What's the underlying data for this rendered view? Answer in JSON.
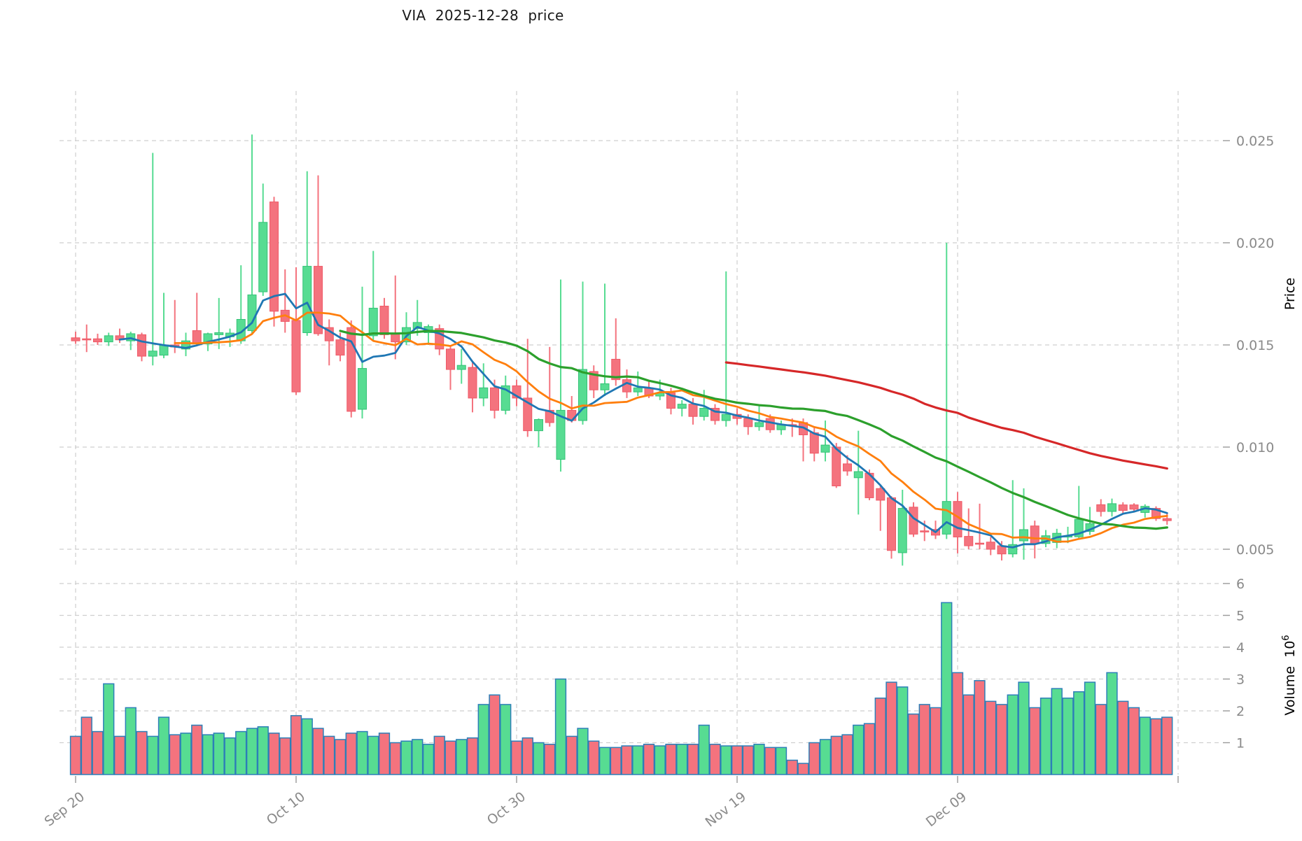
{
  "title": "VIA  2025-12-28  price",
  "chart_data": {
    "type": "candlestick",
    "symbol": "VIA",
    "as_of_label": "2025-12-28",
    "title": "VIA  2025-12-28  price",
    "price_axis": {
      "label": "Price",
      "ticks": [
        0.005,
        0.01,
        0.015,
        0.02,
        0.025
      ],
      "tick_labels": [
        "0.005",
        "0.010",
        "0.015",
        "0.020",
        "0.025"
      ]
    },
    "volume_axis": {
      "label": "Volume",
      "scale_base": "10",
      "scale_exponent": "6",
      "ticks": [
        1,
        2,
        3,
        4,
        5,
        6
      ]
    },
    "x_axis": {
      "tick_labels": [
        "Sep 20",
        "Oct 10",
        "Oct 30",
        "Nov 19",
        "Dec 09",
        ""
      ],
      "tick_bar_indices": [
        0,
        20,
        40,
        60,
        80,
        100
      ]
    },
    "moving_averages": [
      {
        "name": "SMA5",
        "period": 5,
        "color": "#1f77b4",
        "width": 2.8
      },
      {
        "name": "SMA10",
        "period": 10,
        "color": "#ff7f0e",
        "width": 2.8
      },
      {
        "name": "SMA25",
        "period": 25,
        "color": "#2ca02c",
        "width": 3.2
      },
      {
        "name": "SMA60",
        "period": 60,
        "color": "#d62728",
        "width": 3.2
      }
    ],
    "colors": {
      "up": "#57dc92",
      "up_edge": "#35c277",
      "down": "#f4737e",
      "down_edge": "#ef5967",
      "volume_edge": "#2d7fb8",
      "grid": "#cfcfcf",
      "tick_text": "#8a8a8a",
      "axis_text": "#000000",
      "title_text": "#1a1a1a",
      "background": "#ffffff"
    },
    "bars_format": [
      "open",
      "high",
      "low",
      "close",
      "volume_millions"
    ],
    "bars": [
      [
        0.01535,
        0.01565,
        0.01505,
        0.0152,
        1.2
      ],
      [
        0.0153,
        0.016,
        0.01465,
        0.01525,
        1.8
      ],
      [
        0.0153,
        0.01555,
        0.015,
        0.01515,
        1.35
      ],
      [
        0.01515,
        0.0156,
        0.01495,
        0.01545,
        2.85
      ],
      [
        0.01545,
        0.0158,
        0.0151,
        0.01525,
        1.2
      ],
      [
        0.0152,
        0.01565,
        0.01475,
        0.01555,
        2.1
      ],
      [
        0.0155,
        0.0156,
        0.0142,
        0.01445,
        1.35
      ],
      [
        0.01445,
        0.0244,
        0.014,
        0.0147,
        1.2
      ],
      [
        0.0145,
        0.01755,
        0.01435,
        0.015,
        1.8
      ],
      [
        0.015,
        0.0172,
        0.0146,
        0.0149,
        1.25
      ],
      [
        0.0148,
        0.0156,
        0.01445,
        0.0152,
        1.3
      ],
      [
        0.0157,
        0.01755,
        0.015,
        0.0151,
        1.55
      ],
      [
        0.01505,
        0.0156,
        0.0147,
        0.01555,
        1.25
      ],
      [
        0.0155,
        0.0173,
        0.0148,
        0.0156,
        1.3
      ],
      [
        0.0154,
        0.0158,
        0.0149,
        0.01558,
        1.15
      ],
      [
        0.0152,
        0.0189,
        0.01505,
        0.01625,
        1.35
      ],
      [
        0.0157,
        0.0253,
        0.0155,
        0.01745,
        1.45
      ],
      [
        0.0176,
        0.0229,
        0.0174,
        0.021,
        1.5
      ],
      [
        0.022,
        0.02225,
        0.0159,
        0.01665,
        1.3
      ],
      [
        0.0167,
        0.0187,
        0.0156,
        0.01615,
        1.15
      ],
      [
        0.0162,
        0.0188,
        0.01255,
        0.0127,
        1.85
      ],
      [
        0.0156,
        0.0235,
        0.01545,
        0.01885,
        1.75
      ],
      [
        0.01885,
        0.0233,
        0.01545,
        0.01555,
        1.45
      ],
      [
        0.01585,
        0.01625,
        0.014,
        0.0152,
        1.2
      ],
      [
        0.01525,
        0.0156,
        0.0142,
        0.0145,
        1.1
      ],
      [
        0.01585,
        0.0162,
        0.01145,
        0.01175,
        1.3
      ],
      [
        0.01185,
        0.01785,
        0.0114,
        0.01385,
        1.35
      ],
      [
        0.01545,
        0.0196,
        0.0152,
        0.0168,
        1.2
      ],
      [
        0.0169,
        0.0173,
        0.0153,
        0.0155,
        1.3
      ],
      [
        0.01555,
        0.0184,
        0.0143,
        0.01515,
        1.0
      ],
      [
        0.01515,
        0.0166,
        0.015,
        0.01585,
        1.05
      ],
      [
        0.0158,
        0.0172,
        0.01545,
        0.0161,
        1.1
      ],
      [
        0.0156,
        0.016,
        0.015,
        0.0159,
        0.95
      ],
      [
        0.0158,
        0.016,
        0.0145,
        0.0148,
        1.2
      ],
      [
        0.0148,
        0.015,
        0.0128,
        0.0138,
        1.05
      ],
      [
        0.0138,
        0.0148,
        0.0131,
        0.014,
        1.1
      ],
      [
        0.0139,
        0.0142,
        0.0117,
        0.0124,
        1.15
      ],
      [
        0.0124,
        0.0141,
        0.012,
        0.0129,
        2.2
      ],
      [
        0.0129,
        0.0133,
        0.0114,
        0.0118,
        2.5
      ],
      [
        0.0118,
        0.0135,
        0.0116,
        0.013,
        2.2
      ],
      [
        0.013,
        0.0133,
        0.012,
        0.0124,
        1.05
      ],
      [
        0.0124,
        0.0153,
        0.0105,
        0.0108,
        1.15
      ],
      [
        0.0108,
        0.0114,
        0.01,
        0.01135,
        1.0
      ],
      [
        0.0118,
        0.0149,
        0.011,
        0.0112,
        0.95
      ],
      [
        0.0094,
        0.0182,
        0.0088,
        0.0118,
        3.0
      ],
      [
        0.0118,
        0.0125,
        0.0112,
        0.0113,
        1.2
      ],
      [
        0.0113,
        0.0181,
        0.0111,
        0.0138,
        1.45
      ],
      [
        0.0137,
        0.014,
        0.0124,
        0.0128,
        1.05
      ],
      [
        0.0128,
        0.018,
        0.0125,
        0.0131,
        0.85
      ],
      [
        0.0143,
        0.0163,
        0.013,
        0.0133,
        0.85
      ],
      [
        0.0133,
        0.0138,
        0.0124,
        0.0127,
        0.9
      ],
      [
        0.0127,
        0.0137,
        0.0125,
        0.0129,
        0.9
      ],
      [
        0.0129,
        0.0132,
        0.0124,
        0.0125,
        0.95
      ],
      [
        0.0125,
        0.0133,
        0.0123,
        0.01265,
        0.9
      ],
      [
        0.01265,
        0.0129,
        0.0116,
        0.0119,
        0.95
      ],
      [
        0.0119,
        0.0123,
        0.0115,
        0.0121,
        0.95
      ],
      [
        0.0121,
        0.0124,
        0.0111,
        0.0115,
        0.95
      ],
      [
        0.0115,
        0.0128,
        0.0113,
        0.0119,
        1.55
      ],
      [
        0.0119,
        0.0121,
        0.0111,
        0.0113,
        0.95
      ],
      [
        0.0113,
        0.0186,
        0.011,
        0.0116,
        0.9
      ],
      [
        0.0116,
        0.0119,
        0.0111,
        0.0114,
        0.9
      ],
      [
        0.0114,
        0.0116,
        0.0106,
        0.011,
        0.9
      ],
      [
        0.011,
        0.012,
        0.0108,
        0.0112,
        0.95
      ],
      [
        0.0114,
        0.0116,
        0.0107,
        0.01085,
        0.85
      ],
      [
        0.01085,
        0.0113,
        0.0106,
        0.0111,
        0.85
      ],
      [
        0.0111,
        0.0114,
        0.0105,
        0.01105,
        0.45
      ],
      [
        0.0112,
        0.0114,
        0.0093,
        0.0106,
        0.35
      ],
      [
        0.0107,
        0.011,
        0.0093,
        0.0097,
        1.0
      ],
      [
        0.00975,
        0.0113,
        0.0093,
        0.0101,
        1.1
      ],
      [
        0.01,
        0.0102,
        0.008,
        0.0081,
        1.2
      ],
      [
        0.00918,
        0.0096,
        0.0086,
        0.00883,
        1.25
      ],
      [
        0.0085,
        0.0108,
        0.0067,
        0.0088,
        1.55
      ],
      [
        0.00872,
        0.0089,
        0.0074,
        0.00752,
        1.6
      ],
      [
        0.00797,
        0.0081,
        0.0059,
        0.0074,
        2.4
      ],
      [
        0.00752,
        0.0076,
        0.00454,
        0.00494,
        2.9
      ],
      [
        0.00483,
        0.00791,
        0.0042,
        0.007,
        2.75
      ],
      [
        0.00706,
        0.0073,
        0.0056,
        0.00574,
        1.9
      ],
      [
        0.0059,
        0.0064,
        0.0054,
        0.00585,
        2.2
      ],
      [
        0.00597,
        0.0064,
        0.0055,
        0.00569,
        2.1
      ],
      [
        0.00574,
        0.02,
        0.0055,
        0.00734,
        5.4
      ],
      [
        0.00734,
        0.0078,
        0.0048,
        0.0056,
        3.2
      ],
      [
        0.00563,
        0.007,
        0.005,
        0.00517,
        2.5
      ],
      [
        0.0053,
        0.00723,
        0.005,
        0.00528,
        2.95
      ],
      [
        0.00535,
        0.0056,
        0.00471,
        0.005,
        2.3
      ],
      [
        0.00517,
        0.0054,
        0.00445,
        0.00477,
        2.2
      ],
      [
        0.00477,
        0.00838,
        0.0046,
        0.00523,
        2.5
      ],
      [
        0.00541,
        0.00798,
        0.00449,
        0.00596,
        2.9
      ],
      [
        0.00614,
        0.0064,
        0.00455,
        0.00528,
        2.1
      ],
      [
        0.00528,
        0.00594,
        0.0051,
        0.00566,
        2.4
      ],
      [
        0.00533,
        0.006,
        0.00505,
        0.00578,
        2.7
      ],
      [
        0.0056,
        0.0061,
        0.0053,
        0.00565,
        2.4
      ],
      [
        0.00561,
        0.0081,
        0.0055,
        0.00646,
        2.6
      ],
      [
        0.00587,
        0.00707,
        0.0057,
        0.00625,
        2.9
      ],
      [
        0.00718,
        0.00745,
        0.0066,
        0.00685,
        2.2
      ],
      [
        0.00685,
        0.00748,
        0.0066,
        0.00723,
        3.2
      ],
      [
        0.00717,
        0.0073,
        0.0067,
        0.0069,
        2.3
      ],
      [
        0.00717,
        0.00725,
        0.0068,
        0.00696,
        2.1
      ],
      [
        0.0068,
        0.0072,
        0.00655,
        0.0071,
        1.8
      ],
      [
        0.007,
        0.0071,
        0.00639,
        0.0065,
        1.75
      ],
      [
        0.0065,
        0.0068,
        0.0062,
        0.0064,
        1.8
      ]
    ]
  }
}
